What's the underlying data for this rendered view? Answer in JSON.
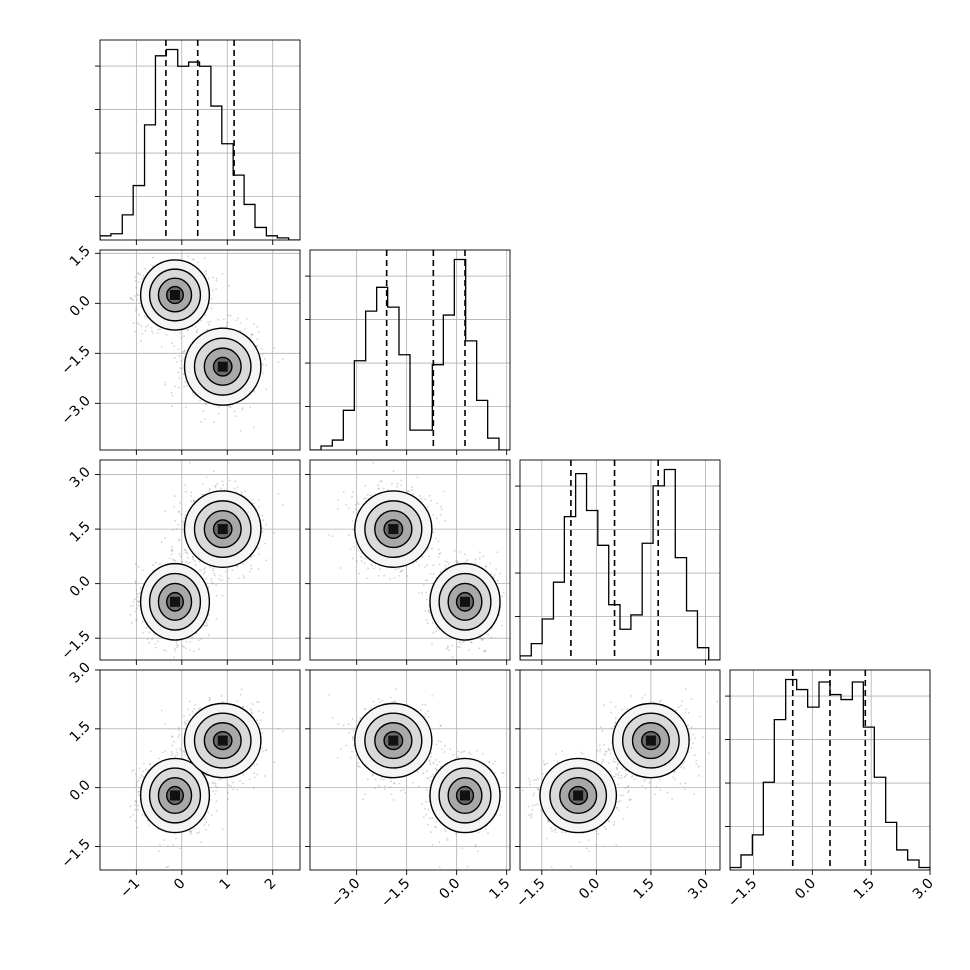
{
  "chart_data": {
    "type": "corner",
    "parameters": 4,
    "grid": true,
    "axis_ranges": [
      [
        -1.8,
        2.6
      ],
      [
        -4.4,
        1.6
      ],
      [
        -2.1,
        3.4
      ],
      [
        -2.1,
        3.0
      ]
    ],
    "tick_labels": [
      [
        "−1",
        "0",
        "1",
        "2"
      ],
      [
        "−3.0",
        "−1.5",
        "0.0",
        "1.5"
      ],
      [
        "−1.5",
        "0.0",
        "1.5",
        "3.0"
      ],
      [
        "−1.5",
        "0.0",
        "1.5",
        "3.0"
      ]
    ],
    "tick_values": [
      [
        -1,
        0,
        1,
        2
      ],
      [
        -3.0,
        -1.5,
        0.0,
        1.5
      ],
      [
        -1.5,
        0.0,
        1.5,
        3.0
      ],
      [
        -1.5,
        0.0,
        1.5,
        3.0
      ]
    ],
    "quantiles": [
      [
        -0.35,
        0.35,
        1.15
      ],
      [
        -2.1,
        -0.7,
        0.25
      ],
      [
        -0.7,
        0.5,
        1.7
      ],
      [
        -0.5,
        0.45,
        1.35
      ]
    ],
    "histograms": [
      {
        "bin_edges": [
          -1.8,
          -1.56,
          -1.31,
          -1.07,
          -0.82,
          -0.58,
          -0.34,
          -0.09,
          0.15,
          0.39,
          0.64,
          0.88,
          1.13,
          1.37,
          1.61,
          1.86,
          2.1,
          2.35,
          2.6
        ],
        "counts": [
          2,
          3,
          12,
          26,
          55,
          88,
          91,
          83,
          85,
          83,
          64,
          46,
          31,
          17,
          6,
          2,
          1,
          0
        ]
      },
      {
        "bin_edges": [
          -4.4,
          -4.07,
          -3.73,
          -3.4,
          -3.07,
          -2.73,
          -2.4,
          -2.07,
          -1.73,
          -1.4,
          -1.07,
          -0.73,
          -0.4,
          -0.07,
          0.27,
          0.6,
          0.93,
          1.27,
          1.6
        ],
        "counts": [
          0,
          2,
          5,
          20,
          45,
          70,
          82,
          72,
          48,
          10,
          10,
          43,
          68,
          96,
          55,
          25,
          6,
          0
        ]
      },
      {
        "bin_edges": [
          -2.1,
          -1.79,
          -1.49,
          -1.18,
          -0.88,
          -0.57,
          -0.27,
          0.04,
          0.34,
          0.65,
          0.95,
          1.26,
          1.56,
          1.87,
          2.17,
          2.48,
          2.78,
          3.09,
          3.4
        ],
        "counts": [
          2,
          8,
          20,
          38,
          70,
          91,
          73,
          56,
          27,
          15,
          22,
          57,
          85,
          93,
          50,
          24,
          6,
          0
        ]
      },
      {
        "bin_edges": [
          -2.1,
          -1.82,
          -1.53,
          -1.25,
          -0.97,
          -0.68,
          -0.4,
          -0.12,
          0.17,
          0.45,
          0.73,
          1.02,
          1.3,
          1.58,
          1.87,
          2.15,
          2.43,
          2.72,
          3.0
        ],
        "counts": [
          1,
          6,
          14,
          35,
          60,
          76,
          72,
          65,
          75,
          70,
          68,
          75,
          57,
          37,
          19,
          8,
          4,
          1
        ]
      }
    ],
    "modes": [
      {
        "mean": [
          -0.15,
          0.25,
          -0.5,
          -0.2
        ],
        "sd": [
          0.36,
          0.5,
          0.5,
          0.45
        ]
      },
      {
        "mean": [
          0.9,
          -1.9,
          1.5,
          1.2
        ],
        "sd": [
          0.4,
          0.55,
          0.5,
          0.45
        ]
      }
    ]
  }
}
